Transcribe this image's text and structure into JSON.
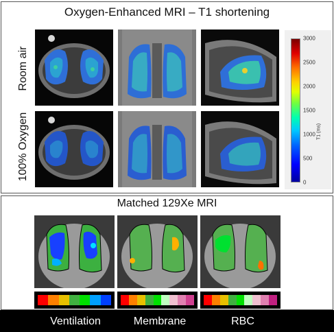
{
  "top_panel": {
    "title": "Oxygen-Enhanced MRI – T1 shortening",
    "row_labels": [
      "Room air",
      "100% Oxygen"
    ],
    "colorbar": {
      "ticks": [
        "3000",
        "2500",
        "2000",
        "1500",
        "1000",
        "500",
        "0"
      ],
      "unit": "T1 (ms)"
    }
  },
  "bottom_panel": {
    "title": "Matched 129Xe MRI",
    "legends": {
      "ventilation": [
        "#ff0000",
        "#ff8000",
        "#e8c000",
        "#40b040",
        "#00e000",
        "#00a0ff",
        "#0040ff"
      ],
      "membrane": [
        "#ff0000",
        "#ff8000",
        "#e8c000",
        "#40b040",
        "#00e000",
        "#c0ffc0",
        "#f0c0d0",
        "#e080b0",
        "#d04090"
      ],
      "rbc": [
        "#ff0000",
        "#ff8000",
        "#e8c000",
        "#40b040",
        "#00e000",
        "#c0ffc0",
        "#f0c0d0",
        "#e080b0",
        "#c02080"
      ]
    }
  },
  "captions": {
    "ventilation": "Ventilation",
    "membrane": "Membrane",
    "rbc": "RBC"
  }
}
